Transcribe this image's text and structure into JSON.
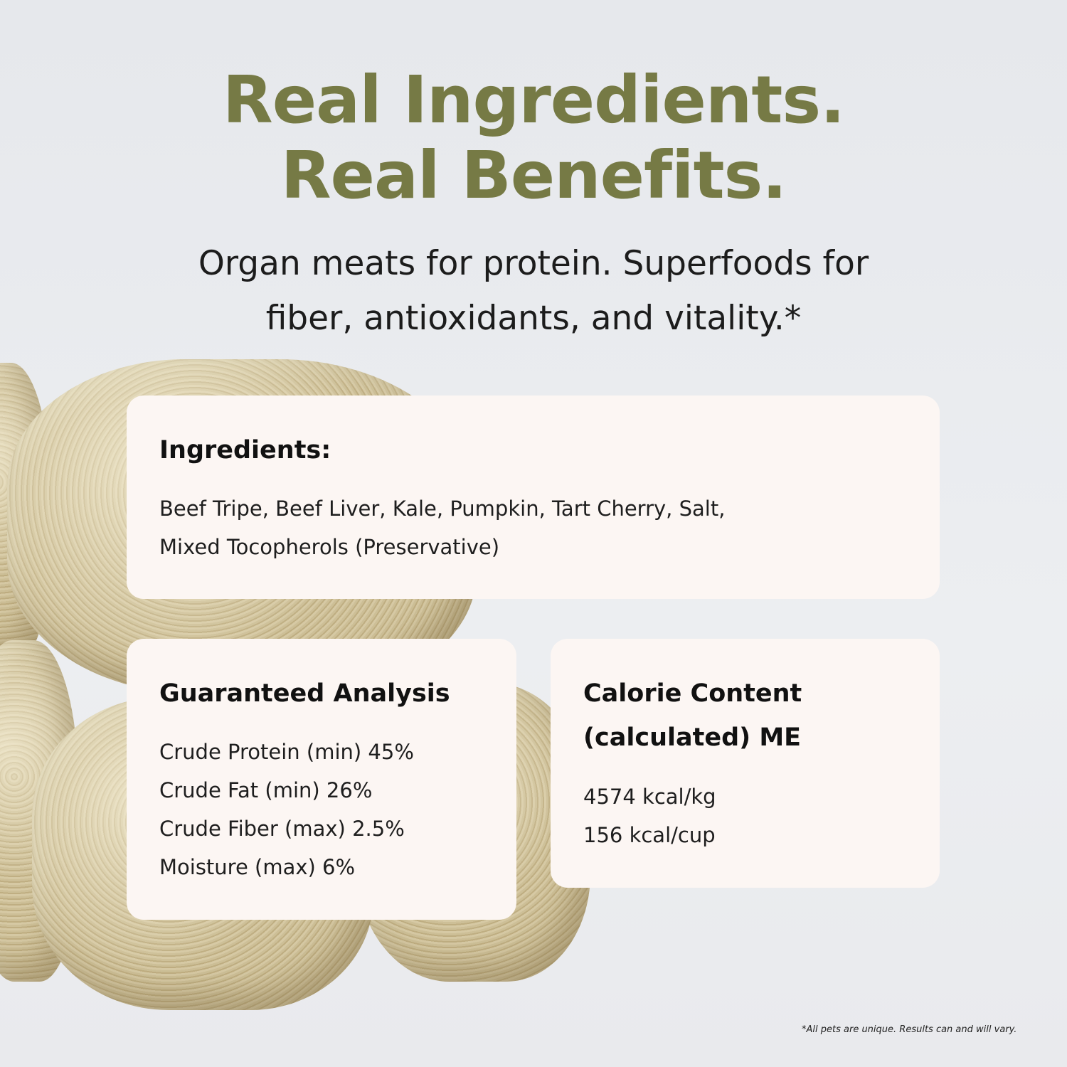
{
  "headline": {
    "line1": "Real Ingredients.",
    "line2": "Real Benefits."
  },
  "subheadline": {
    "line1": "Organ meats for protein. Superfoods for",
    "line2": "fiber, antioxidants, and vitality.*"
  },
  "ingredients": {
    "title": "Ingredients:",
    "lines": [
      "Beef Tripe, Beef Liver, Kale, Pumpkin, Tart Cherry, Salt,",
      "Mixed Tocopherols (Preservative)"
    ]
  },
  "guaranteed_analysis": {
    "title": "Guaranteed Analysis",
    "items": [
      "Crude Protein (min) 45%",
      "Crude Fat (min) 26%",
      "Crude Fiber (max) 2.5%",
      "Moisture (max) 6%"
    ]
  },
  "calorie_content": {
    "title_line1": "Calorie Content",
    "title_line2": "(calculated) ME",
    "items": [
      "4574 kcal/kg",
      "156 kcal/cup"
    ]
  },
  "footnote": "*All pets are unique. Results can and will vary.",
  "colors": {
    "headline": "#767a45",
    "card": "#fcf6f3",
    "background": "#e9ebee"
  }
}
